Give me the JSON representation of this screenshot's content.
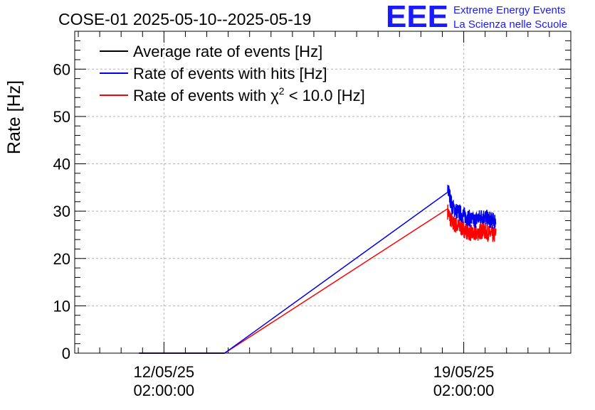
{
  "chart_data": {
    "type": "line",
    "title": "COSE-01 2025-05-10--2025-05-19",
    "ylabel": "Rate [Hz]",
    "xlabel": "",
    "ylim": [
      0,
      68
    ],
    "yticks": [
      0,
      10,
      20,
      30,
      40,
      50,
      60
    ],
    "xticks": [
      {
        "date": "2025-05-12T02:00:00",
        "line1": "12/05/25",
        "line2": "02:00:00"
      },
      {
        "date": "2025-05-19T02:00:00",
        "line1": "19/05/25",
        "line2": "02:00:00"
      }
    ],
    "xlim": [
      "2025-05-10T00:00:00",
      "2025-05-21T14:00:00"
    ],
    "grid": true,
    "legend_position": "top-left",
    "logo": {
      "text": "EEE",
      "line1": "Extreme Energy Events",
      "line2": "La Scienza nelle Scuole",
      "color": "#1a1aff"
    },
    "series": [
      {
        "name": "Average rate of events [Hz]",
        "color": "#000000",
        "x": [
          "2025-05-11T12:00:00",
          "2025-05-13T12:00:00"
        ],
        "y": [
          0,
          0
        ]
      },
      {
        "name": "Rate of events with hits [Hz]",
        "color": "#0000ee",
        "x": [
          "2025-05-11T12:00:00",
          "2025-05-13T12:00:00",
          "2025-05-18T17:00:00"
        ],
        "y": [
          0,
          0,
          34
        ],
        "noisy": {
          "x_start": "2025-05-18T17:00:00",
          "x_end": "2025-05-19T20:00:00",
          "y": [
            35,
            31,
            30,
            29.5,
            29,
            28.5,
            28,
            28.5,
            29,
            28.5,
            28,
            28
          ],
          "spread": 1.8
        }
      },
      {
        "name_prefix": "Rate of events with ",
        "name_symbol": "χ",
        "name_sup": "2",
        "name_suffix": " < 10.0 [Hz]",
        "color": "#ff0000",
        "x": [
          "2025-05-11T12:00:00",
          "2025-05-13T12:00:00",
          "2025-05-18T17:00:00"
        ],
        "y": [
          0,
          0,
          30.5
        ],
        "noisy": {
          "x_start": "2025-05-18T17:00:00",
          "x_end": "2025-05-19T20:00:00",
          "y": [
            30,
            27.5,
            27,
            26.5,
            26,
            25.5,
            25,
            25.5,
            26,
            25.5,
            25,
            25
          ],
          "spread": 1.8
        }
      }
    ]
  }
}
